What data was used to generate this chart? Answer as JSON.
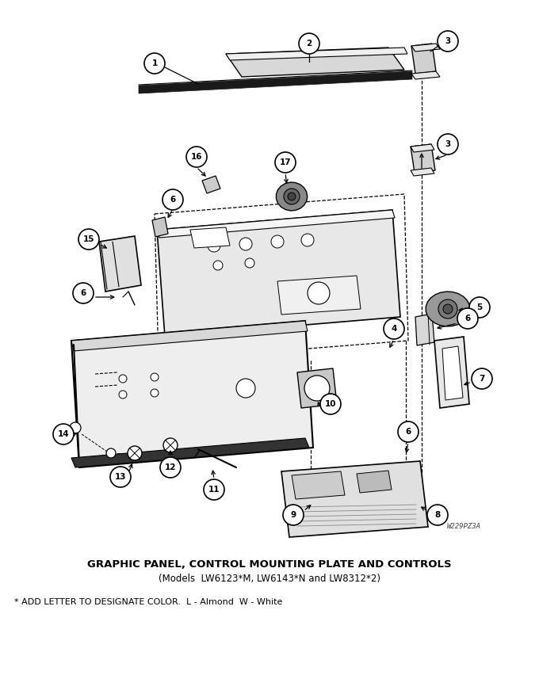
{
  "title_main": "GRAPHIC PANEL, CONTROL MOUNTING PLATE AND CONTROLS",
  "title_sub": "(Models  LW6123*M, LW6143*N and LW8312*2)",
  "footnote": "* ADD LETTER TO DESIGNATE COLOR.  L - Almond  W - White",
  "watermark": "W229PZ3A",
  "bg_color": "#ffffff"
}
